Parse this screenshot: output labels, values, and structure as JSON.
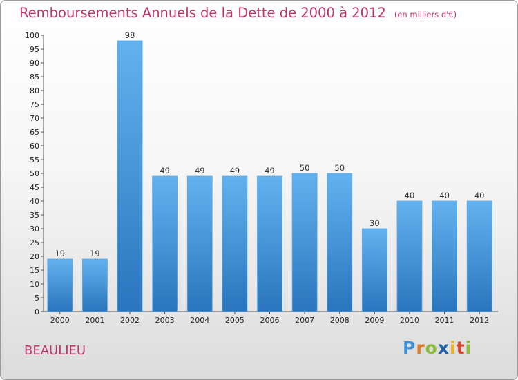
{
  "title": "Remboursements Annuels de la Dette de 2000 à 2012",
  "unit_note": "(en milliers d'€)",
  "commune": "BEAULIEU",
  "logo": {
    "p": "P",
    "r": "r",
    "o": "o",
    "x": "x",
    "i1": "i",
    "t": "t",
    "i2": "i"
  },
  "colors": {
    "bar": "#3c8fd6",
    "bar_light": "#63b2ee",
    "bar_dark": "#2a75bd",
    "title": "#c0336a"
  },
  "chart_data": {
    "type": "bar",
    "title": "Remboursements Annuels de la Dette de 2000 à 2012",
    "subtitle": "(en milliers d'€)",
    "categories": [
      "2000",
      "2001",
      "2002",
      "2003",
      "2004",
      "2005",
      "2006",
      "2007",
      "2008",
      "2009",
      "2010",
      "2011",
      "2012"
    ],
    "values": [
      19,
      19,
      98,
      49,
      49,
      49,
      49,
      50,
      50,
      30,
      40,
      40,
      40
    ],
    "ylim": [
      0,
      100
    ],
    "yticks": [
      0,
      5,
      10,
      15,
      20,
      25,
      30,
      35,
      40,
      45,
      50,
      55,
      60,
      65,
      70,
      75,
      80,
      85,
      90,
      95,
      100
    ],
    "grid": false,
    "legend": "none"
  }
}
